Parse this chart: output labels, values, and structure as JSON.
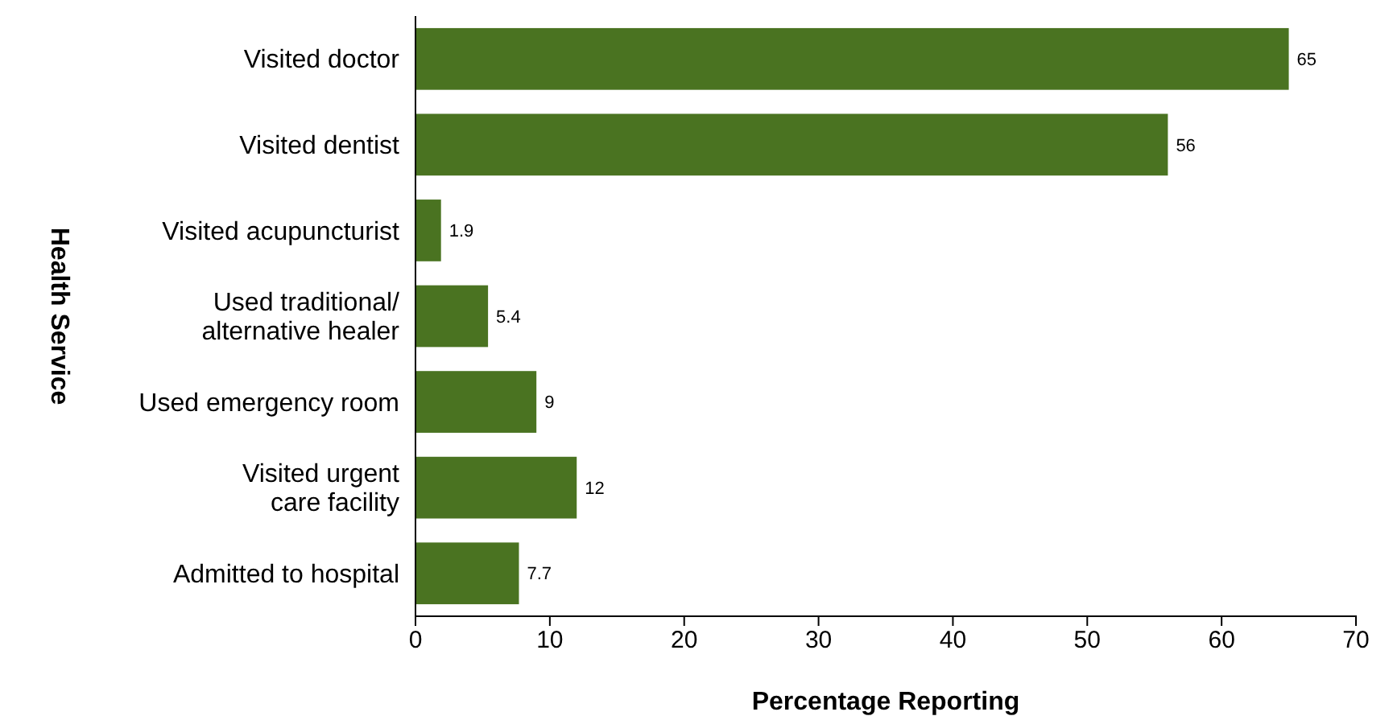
{
  "chart_data": {
    "type": "bar",
    "orientation": "horizontal",
    "categories": [
      "Visited doctor",
      "Visited dentist",
      "Visited acupuncturist",
      "Used traditional/\nalternative healer",
      "Used emergency room",
      "Visited urgent\ncare facility",
      "Admitted to hospital"
    ],
    "values": [
      65,
      56,
      1.9,
      5.4,
      9,
      12,
      7.7
    ],
    "color": "#4a7321",
    "xlim": [
      0,
      70
    ],
    "xticks": [
      0,
      10,
      20,
      30,
      40,
      50,
      60,
      70
    ],
    "xlabel": "Percentage Reporting",
    "ylabel": "Health Service",
    "data_labels": true,
    "grid": false
  }
}
